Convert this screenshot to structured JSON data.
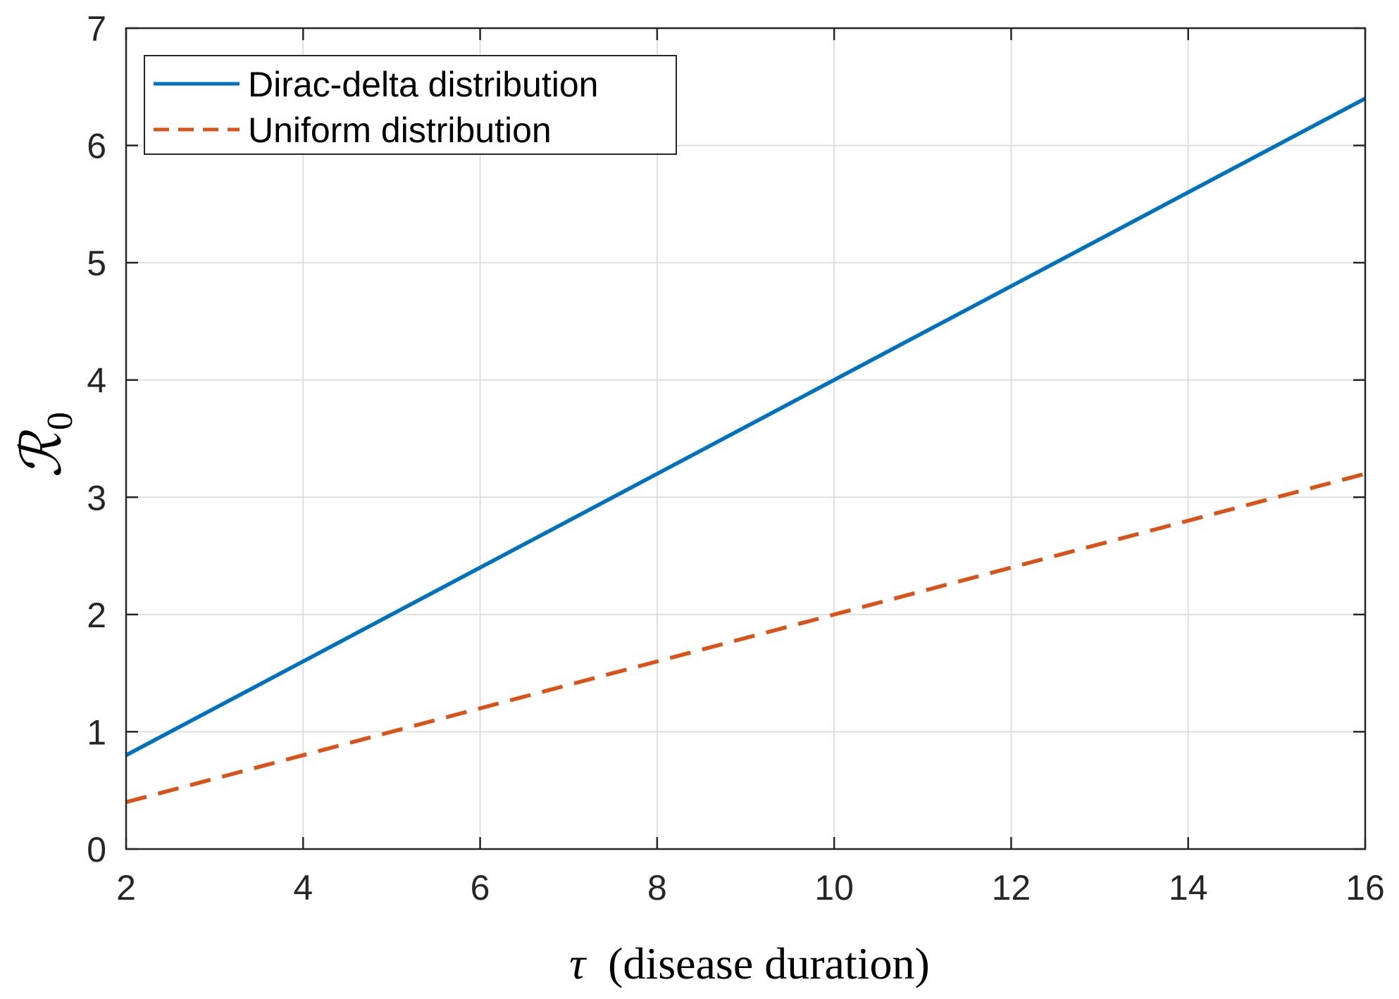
{
  "chart_data": {
    "type": "line",
    "title": "",
    "xlabel": {
      "symbol": "τ",
      "text": "(disease  duration)"
    },
    "ylabel": {
      "symbol": "ℛ",
      "subscript": "0"
    },
    "xlim": [
      2,
      16
    ],
    "ylim": [
      0,
      7
    ],
    "xticks": [
      2,
      4,
      6,
      8,
      10,
      12,
      14,
      16
    ],
    "yticks": [
      0,
      1,
      2,
      3,
      4,
      5,
      6,
      7
    ],
    "grid": true,
    "legend_position": "top-left",
    "x": [
      2,
      4,
      6,
      8,
      10,
      12,
      14,
      16
    ],
    "series": [
      {
        "name": "Dirac-delta distribution",
        "values": [
          0.8,
          1.6,
          2.4,
          3.2,
          4.0,
          4.8,
          5.6,
          6.4
        ],
        "color": "#0072BD",
        "style": "solid"
      },
      {
        "name": "Uniform distribution",
        "values": [
          0.4,
          0.8,
          1.2,
          1.6,
          2.0,
          2.4,
          2.8,
          3.2
        ],
        "color": "#D95319",
        "style": "dashed"
      }
    ]
  }
}
